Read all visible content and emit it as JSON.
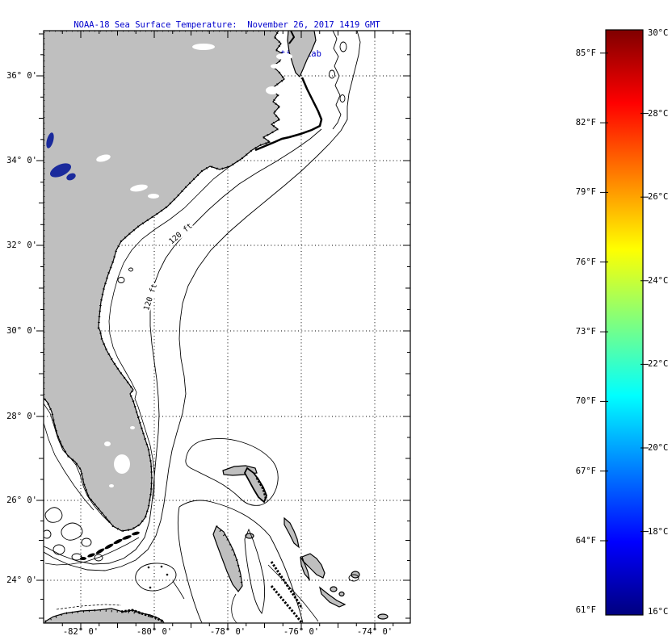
{
  "title": {
    "line1": "NOAA-18 Sea Surface Temperature:  November 26, 2017 1419 GMT",
    "line2": "Rutgers Coastal Ocean Observation Lab"
  },
  "map": {
    "lat_labels": [
      "36° 0'",
      "34° 0'",
      "32° 0'",
      "30° 0'",
      "28° 0'",
      "26° 0'",
      "24° 0'"
    ],
    "lon_labels": [
      "-82° 0'",
      "-80° 0'",
      "-78° 0'",
      "-76° 0'",
      "-74° 0'"
    ],
    "contour_labels": [
      "120 ft",
      "120 ft"
    ]
  },
  "colorbar": {
    "celsius_labels": [
      "30°C",
      "28°C",
      "26°C",
      "24°C",
      "22°C",
      "20°C",
      "18°C",
      "16°C"
    ],
    "fahrenheit_labels": [
      "85°F",
      "82°F",
      "79°F",
      "76°F",
      "73°F",
      "70°F",
      "67°F",
      "64°F",
      "61°F"
    ],
    "scale_min_c": 16,
    "scale_max_c": 30,
    "jet": [
      "#7F0000",
      "#FF0000",
      "#FF7F00",
      "#FFFF00",
      "#7FFF7F",
      "#00FFFF",
      "#007FFF",
      "#0000FF",
      "#00007F"
    ]
  },
  "colors": {
    "land": "#BFBFBF",
    "lake_sst": "#1A2A9C",
    "title_blue": "#0000CD"
  }
}
